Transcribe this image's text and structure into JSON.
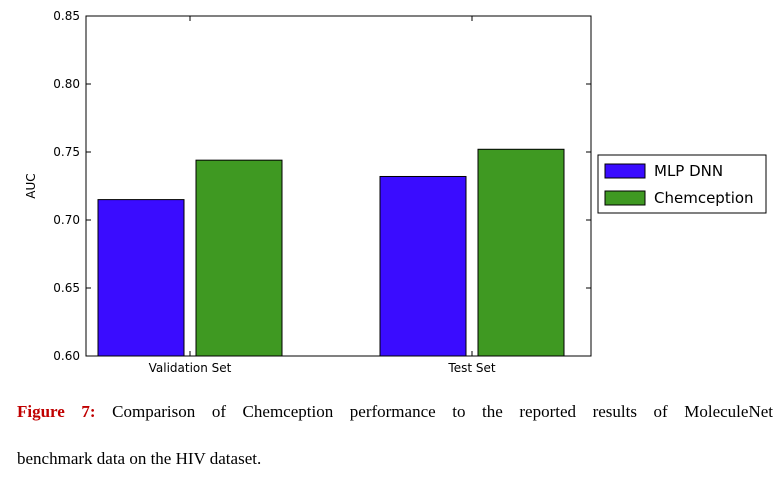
{
  "chart_data": {
    "type": "bar",
    "categories": [
      "Validation Set",
      "Test Set"
    ],
    "series": [
      {
        "name": "MLP DNN",
        "values": [
          0.715,
          0.732
        ],
        "color": "#3a0cff"
      },
      {
        "name": "Chemception",
        "values": [
          0.744,
          0.752
        ],
        "color": "#3f9922"
      }
    ],
    "ylabel": "AUC",
    "xlabel": "",
    "ylim": [
      0.6,
      0.85
    ],
    "yticks": [
      "0.60",
      "0.65",
      "0.70",
      "0.75",
      "0.80",
      "0.85"
    ],
    "legend": "right-outside",
    "grid": false
  },
  "caption": {
    "label": "Figure 7:",
    "line1": " Comparison of Chemception performance to the reported results of MoleculeNet",
    "line2": "benchmark data on the HIV dataset."
  }
}
